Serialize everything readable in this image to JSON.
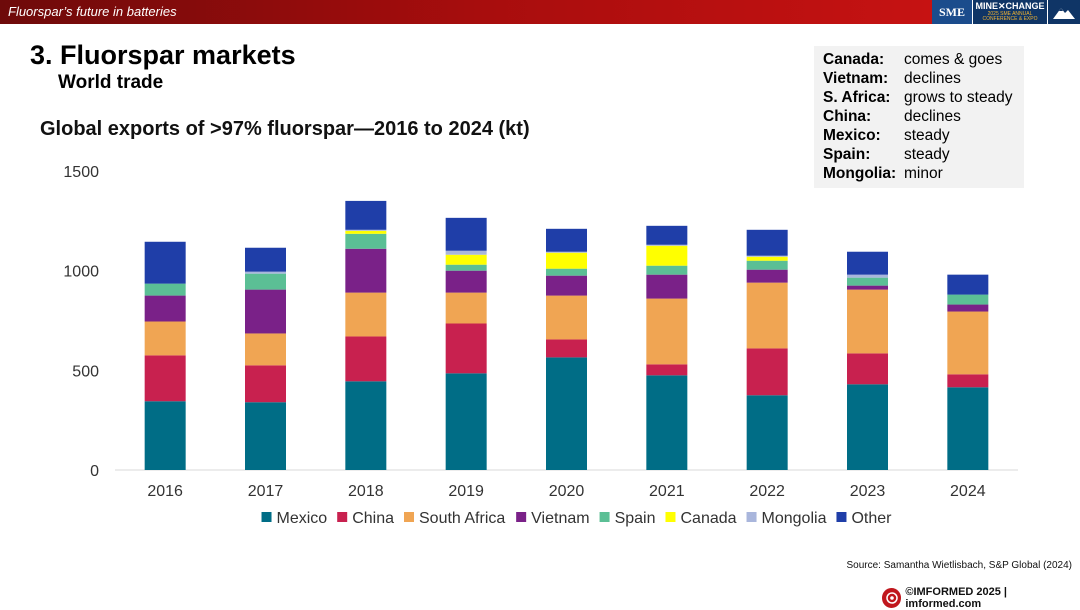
{
  "header": {
    "title": "Fluorspar’s future in batteries",
    "logos": {
      "sme": "SME",
      "minexchange_line1": "MINE✕CHANGE",
      "minexchange_line2": "2025 SME ANNUAL",
      "minexchange_line3": "CONFERENCE & EXPO"
    }
  },
  "slide": {
    "title": "3. Fluorspar markets",
    "subtitle": "World trade"
  },
  "info_box": [
    {
      "label": "Canada:",
      "value": "comes & goes"
    },
    {
      "label": "Vietnam:",
      "value": "declines"
    },
    {
      "label": "S. Africa:",
      "value": "grows to steady"
    },
    {
      "label": "China:",
      "value": "declines"
    },
    {
      "label": "Mexico:",
      "value": "steady"
    },
    {
      "label": "Spain:",
      "value": "steady"
    },
    {
      "label": "Mongolia:",
      "value": "minor"
    }
  ],
  "chart_data": {
    "type": "bar",
    "stacked": true,
    "title": "Global exports of >97% fluorspar—2016 to 2024 (kt)",
    "xlabel": "",
    "ylabel": "",
    "ylim": [
      0,
      1500
    ],
    "yticks": [
      0,
      500,
      1000,
      1500
    ],
    "grid": false,
    "legend_position": "bottom",
    "categories": [
      "2016",
      "2017",
      "2018",
      "2019",
      "2020",
      "2021",
      "2022",
      "2023",
      "2024"
    ],
    "series": [
      {
        "name": "Mexico",
        "color": "#006d86",
        "values": [
          345,
          340,
          445,
          485,
          565,
          475,
          375,
          430,
          415
        ]
      },
      {
        "name": "China",
        "color": "#c8214f",
        "values": [
          230,
          185,
          225,
          250,
          90,
          55,
          235,
          155,
          65
        ]
      },
      {
        "name": "South Africa",
        "color": "#f0a553",
        "values": [
          170,
          160,
          220,
          155,
          220,
          330,
          330,
          320,
          315
        ]
      },
      {
        "name": "Vietnam",
        "color": "#7a2188",
        "values": [
          130,
          220,
          220,
          110,
          100,
          120,
          65,
          20,
          35
        ]
      },
      {
        "name": "Spain",
        "color": "#5bbf95",
        "values": [
          60,
          80,
          75,
          30,
          35,
          45,
          45,
          40,
          50
        ]
      },
      {
        "name": "Canada",
        "color": "#ffff00",
        "values": [
          0,
          0,
          15,
          50,
          80,
          100,
          20,
          0,
          0
        ]
      },
      {
        "name": "Mongolia",
        "color": "#a9b6dc",
        "values": [
          0,
          10,
          5,
          20,
          5,
          5,
          5,
          15,
          0
        ]
      },
      {
        "name": "Other",
        "color": "#1f3ea8",
        "values": [
          210,
          120,
          145,
          165,
          115,
          95,
          130,
          115,
          100
        ]
      }
    ]
  },
  "source": "Source: Samantha Wietlisbach, S&P Global (2024)",
  "footer": "©IMFORMED 2025  | imformed.com"
}
